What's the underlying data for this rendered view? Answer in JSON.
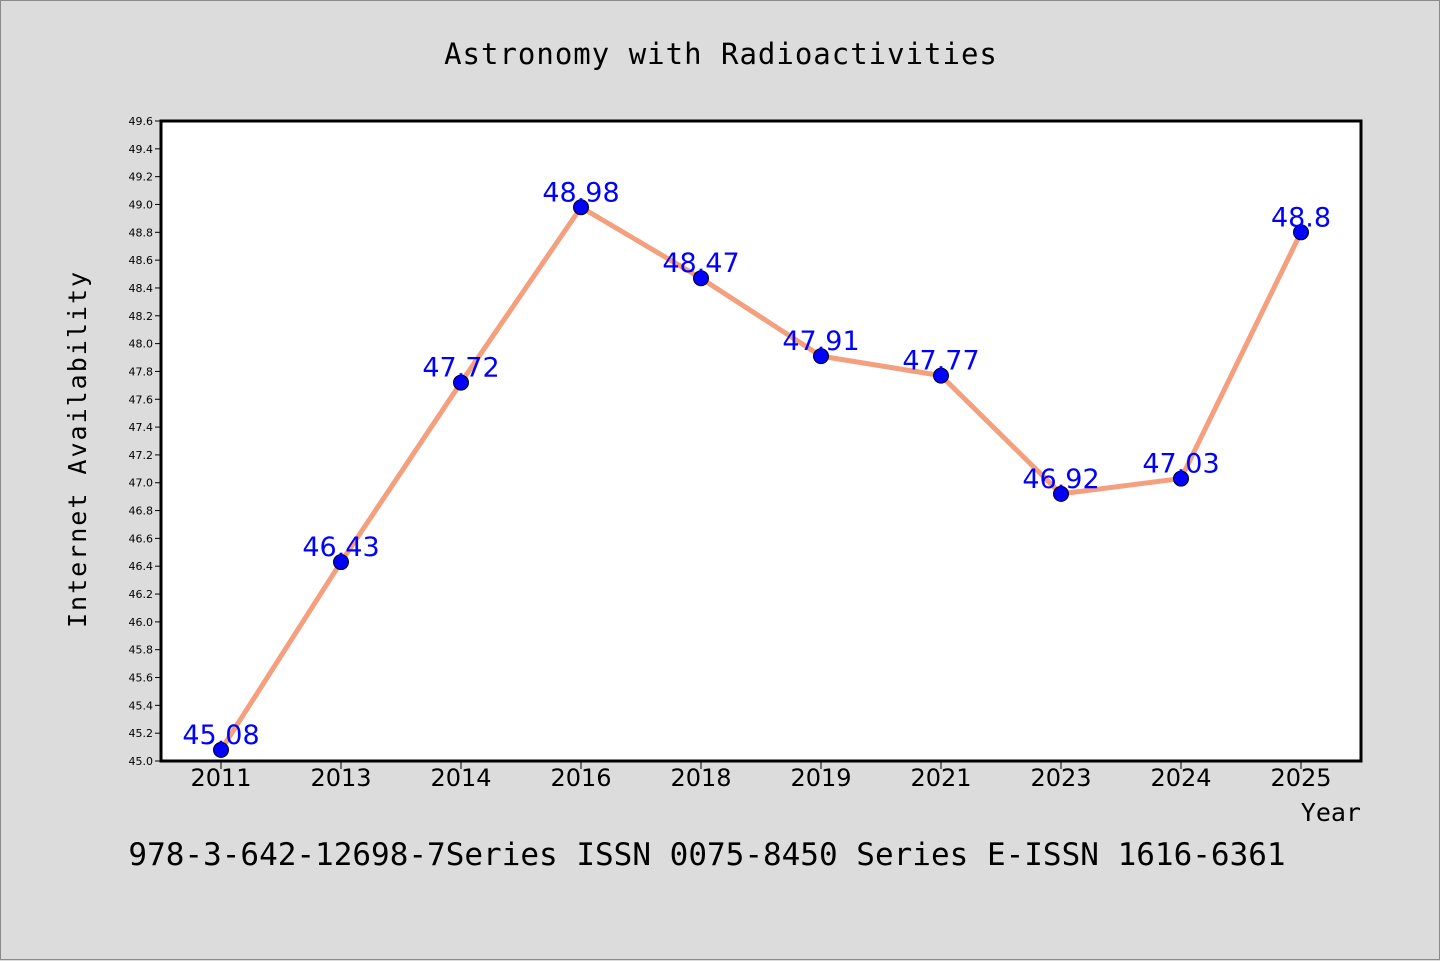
{
  "chart_data": {
    "type": "line",
    "title": "Astronomy with Radioactivities",
    "xlabel": "Year",
    "ylabel": "Internet Availability",
    "categories": [
      "2011",
      "2013",
      "2014",
      "2016",
      "2018",
      "2019",
      "2021",
      "2023",
      "2024",
      "2025"
    ],
    "series": [
      {
        "values": [
          45.08,
          46.43,
          47.72,
          48.98,
          48.47,
          47.91,
          47.77,
          46.92,
          47.03,
          48.8
        ],
        "labels": [
          "45.08",
          "46.43",
          "47.72",
          "48.98",
          "48.47",
          "47.91",
          "47.77",
          "46.92",
          "47.03",
          "48.8"
        ]
      }
    ],
    "ylim": [
      45.0,
      49.6
    ],
    "yticks": [
      "45.0",
      "45.2",
      "45.4",
      "45.6",
      "45.8",
      "46.0",
      "46.2",
      "46.4",
      "46.6",
      "46.8",
      "47.0",
      "47.2",
      "47.4",
      "47.6",
      "47.8",
      "48.0",
      "48.2",
      "48.4",
      "48.6",
      "48.8",
      "49.0",
      "49.2",
      "49.4",
      "49.6"
    ],
    "grid": false,
    "colors": {
      "line": "#f4a07e",
      "marker": "#0000ff",
      "label": "#0000ff",
      "axes": "#000000",
      "background": "#dcdcdc",
      "plot_background": "#ffffff"
    }
  },
  "footer": {
    "text": "978-3-642-12698-7Series ISSN 0075-8450 Series E-ISSN 1616-6361"
  }
}
